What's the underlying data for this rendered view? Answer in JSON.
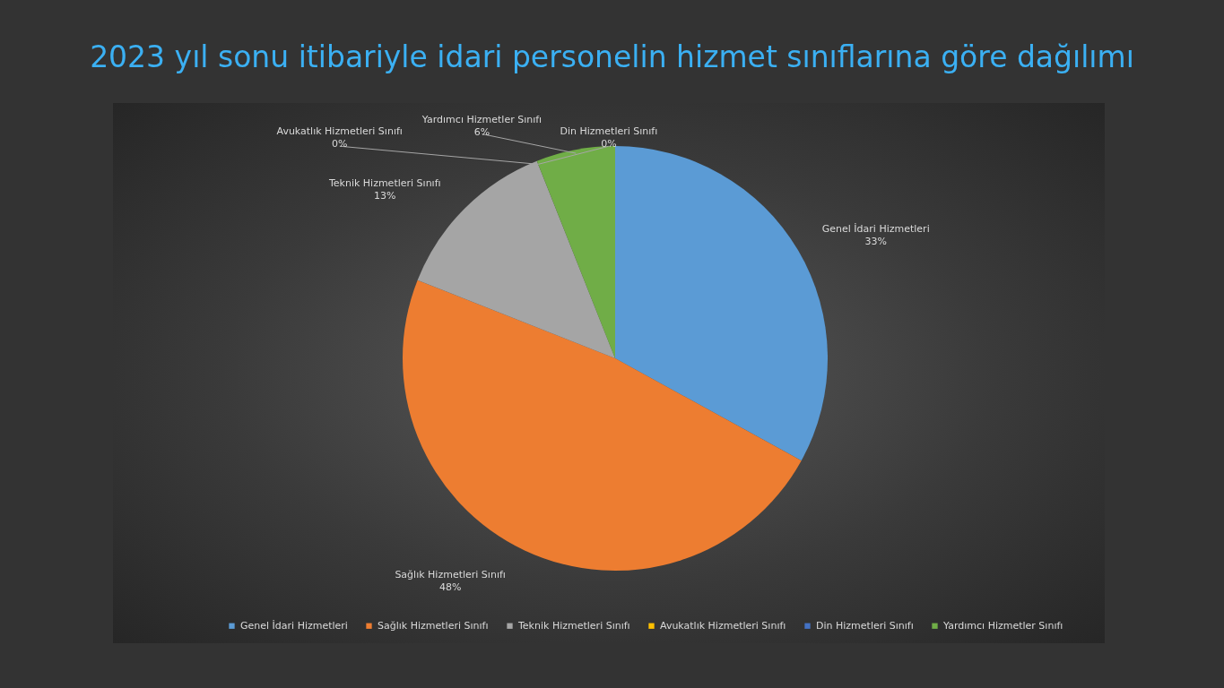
{
  "chart_data": {
    "type": "pie",
    "title": "2023 yıl sonu itibariyle idari personelin hizmet sınıflarına göre dağılımı",
    "categories": [
      "Genel İdari Hizmetleri",
      "Sağlık Hizmetleri Sınıfı",
      "Teknik Hizmetleri Sınıfı",
      "Avukatlık Hizmetleri Sınıfı",
      "Din Hizmetleri Sınıfı",
      "Yardımcı Hizmetler Sınıfı"
    ],
    "values": [
      33,
      48,
      13,
      0,
      0,
      6
    ],
    "colors": [
      "#5b9bd5",
      "#ed7d31",
      "#a5a5a5",
      "#ffc000",
      "#4472c4",
      "#70ad47"
    ],
    "value_labels": [
      "33%",
      "48%",
      "13%",
      "0%",
      "0%",
      "6%"
    ],
    "legend": "bottom"
  }
}
